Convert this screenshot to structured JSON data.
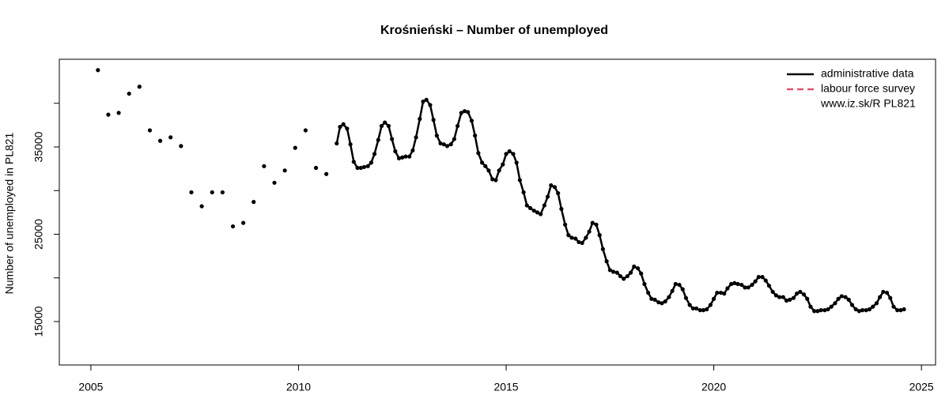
{
  "chart_data": {
    "type": "line",
    "title": "Krośnieński – Number of unemployed",
    "y_label": "Number of unemployed in PL821",
    "xlim": [
      2004.24,
      2025.34
    ],
    "ylim": [
      10023,
      45045
    ],
    "xticks": [
      2005,
      2010,
      2015,
      2020,
      2025
    ],
    "yticks": [
      15000,
      25000,
      35000
    ],
    "yminor_ticks": [
      20000,
      30000,
      40000
    ],
    "legend": "topright",
    "legend_note": "www.iz.sk/R PL821",
    "series": [
      {
        "color": "#000000",
        "style": "points",
        "x": [
          2005.17,
          2005.42,
          2005.67,
          2005.92,
          2006.17,
          2006.42,
          2006.67,
          2006.92,
          2007.17,
          2007.42,
          2007.67,
          2007.92,
          2008.17,
          2008.42,
          2008.67,
          2008.92,
          2009.17,
          2009.42,
          2009.67,
          2009.92,
          2010.17,
          2010.42,
          2010.67
        ],
        "values": [
          43800,
          38700,
          38900,
          41100,
          41900,
          36900,
          35700,
          36100,
          35100,
          29800,
          28200,
          29800,
          29800,
          25900,
          26300,
          28700,
          32800,
          30900,
          32300,
          34900,
          36900,
          32600,
          31900
        ]
      },
      {
        "name": "administrative data",
        "color": "#000000",
        "style": "line-points",
        "x": [
          2010.92,
          2011,
          2011.08,
          2011.17,
          2011.25,
          2011.33,
          2011.42,
          2011.5,
          2011.58,
          2011.67,
          2011.75,
          2011.83,
          2011.92,
          2012,
          2012.08,
          2012.17,
          2012.25,
          2012.33,
          2012.42,
          2012.5,
          2012.58,
          2012.67,
          2012.75,
          2012.83,
          2012.92,
          2013,
          2013.08,
          2013.17,
          2013.25,
          2013.33,
          2013.42,
          2013.5,
          2013.58,
          2013.67,
          2013.75,
          2013.83,
          2013.92,
          2014,
          2014.08,
          2014.17,
          2014.25,
          2014.33,
          2014.42,
          2014.5,
          2014.58,
          2014.67,
          2014.75,
          2014.83,
          2014.92,
          2015,
          2015.08,
          2015.17,
          2015.25,
          2015.33,
          2015.42,
          2015.5,
          2015.58,
          2015.67,
          2015.75,
          2015.83,
          2015.92,
          2016,
          2016.08,
          2016.17,
          2016.25,
          2016.33,
          2016.42,
          2016.5,
          2016.58,
          2016.67,
          2016.75,
          2016.83,
          2016.92,
          2017,
          2017.08,
          2017.17,
          2017.25,
          2017.33,
          2017.42,
          2017.5,
          2017.58,
          2017.67,
          2017.75,
          2017.83,
          2017.92,
          2018,
          2018.08,
          2018.17,
          2018.25,
          2018.33,
          2018.42,
          2018.5,
          2018.58,
          2018.67,
          2018.75,
          2018.83,
          2018.92,
          2019,
          2019.08,
          2019.17,
          2019.25,
          2019.33,
          2019.42,
          2019.5,
          2019.58,
          2019.67,
          2019.75,
          2019.83,
          2019.92,
          2020,
          2020.08,
          2020.17,
          2020.25,
          2020.33,
          2020.42,
          2020.5,
          2020.58,
          2020.67,
          2020.75,
          2020.83,
          2020.92,
          2021,
          2021.08,
          2021.17,
          2021.25,
          2021.33,
          2021.42,
          2021.5,
          2021.58,
          2021.67,
          2021.75,
          2021.83,
          2021.92,
          2022,
          2022.08,
          2022.17,
          2022.25,
          2022.33,
          2022.42,
          2022.5,
          2022.58,
          2022.67,
          2022.75,
          2022.83,
          2022.92,
          2023,
          2023.08,
          2023.17,
          2023.25,
          2023.33,
          2023.42,
          2023.5,
          2023.58,
          2023.67,
          2023.75,
          2023.83,
          2023.92,
          2024,
          2024.08,
          2024.17,
          2024.25,
          2024.33,
          2024.42,
          2024.5,
          2024.58
        ],
        "values": [
          35400,
          37300,
          37600,
          37100,
          35300,
          33300,
          32600,
          32600,
          32700,
          32800,
          33200,
          34200,
          35800,
          37400,
          37800,
          37400,
          35900,
          34500,
          33700,
          33800,
          33900,
          33900,
          34600,
          36100,
          38200,
          40200,
          40400,
          39800,
          38100,
          36300,
          35400,
          35300,
          35100,
          35300,
          35900,
          37400,
          38900,
          39100,
          39000,
          38000,
          36300,
          34300,
          33200,
          32800,
          32300,
          31300,
          31200,
          32300,
          33000,
          34200,
          34500,
          34200,
          33200,
          31200,
          29800,
          28300,
          28000,
          27700,
          27500,
          27300,
          28300,
          29300,
          30600,
          30400,
          29700,
          27900,
          26100,
          24900,
          24600,
          24500,
          24100,
          24000,
          24600,
          25300,
          26300,
          26100,
          24900,
          23300,
          21900,
          20900,
          20700,
          20600,
          20200,
          19900,
          20200,
          20600,
          21300,
          21100,
          20500,
          19300,
          18300,
          17600,
          17500,
          17200,
          17100,
          17300,
          17800,
          18500,
          19300,
          19200,
          18700,
          17700,
          16900,
          16500,
          16500,
          16300,
          16300,
          16400,
          16900,
          17600,
          18300,
          18300,
          18200,
          18800,
          19300,
          19400,
          19300,
          19200,
          18900,
          18900,
          19200,
          19600,
          20100,
          20100,
          19700,
          19100,
          18400,
          18000,
          17800,
          17800,
          17400,
          17500,
          17700,
          18200,
          18400,
          18100,
          17600,
          16700,
          16200,
          16200,
          16300,
          16300,
          16400,
          16700,
          17100,
          17600,
          17900,
          17800,
          17500,
          16900,
          16400,
          16200,
          16300,
          16300,
          16400,
          16700,
          17100,
          17800,
          18400,
          18300,
          17700,
          16700,
          16300,
          16300,
          16400
        ]
      },
      {
        "name": "labour force survey",
        "color": "#df536b",
        "style": "dashed",
        "x": [],
        "values": []
      }
    ]
  }
}
